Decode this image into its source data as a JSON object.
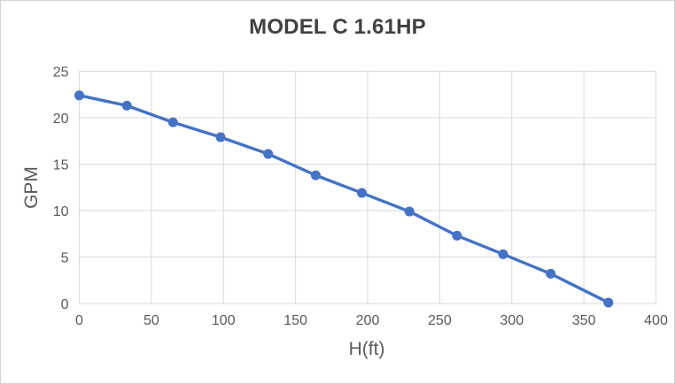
{
  "frame": {
    "background": "#ffffff",
    "border_color": "#d3d3d3"
  },
  "chart_data": {
    "type": "line",
    "title": "MODEL C 1.61HP",
    "xlabel": "H(ft)",
    "ylabel": "GPM",
    "x": [
      0,
      33,
      65,
      98,
      131,
      164,
      196,
      229,
      262,
      294,
      327,
      367
    ],
    "y": [
      22.4,
      21.3,
      19.5,
      17.9,
      16.1,
      13.8,
      11.9,
      9.9,
      7.3,
      5.3,
      3.2,
      0.1
    ],
    "xlim": [
      0,
      400
    ],
    "ylim": [
      0,
      25
    ],
    "x_ticks": [
      0,
      50,
      100,
      150,
      200,
      250,
      300,
      350,
      400
    ],
    "y_ticks": [
      0,
      5,
      10,
      15,
      20,
      25
    ],
    "grid": true,
    "legend": "none",
    "line_color": "#4472c4",
    "marker_color": "#4472c4",
    "gridline_color": "#d9d9d9",
    "tick_label_color": "#595959",
    "axis_title_color": "#595959",
    "title_color": "#404040"
  }
}
